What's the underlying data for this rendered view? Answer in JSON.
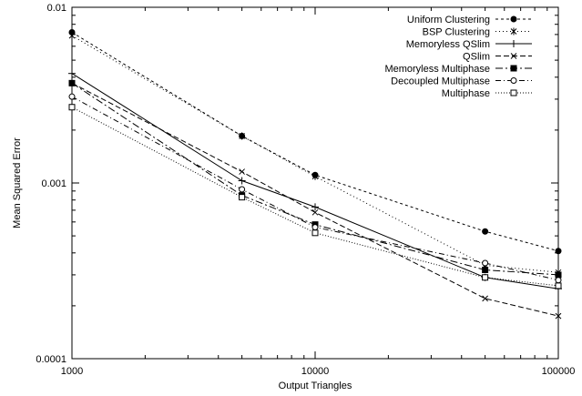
{
  "chart_data": {
    "type": "line",
    "title": "",
    "xlabel": "Output Triangles",
    "ylabel": "Mean Squared Error",
    "xscale": "log",
    "yscale": "log",
    "xlim": [
      1000,
      100000
    ],
    "ylim": [
      0.0001,
      0.01
    ],
    "grid": false,
    "legend_position": "top-right",
    "x_ticks": [
      {
        "value": 1000,
        "label": "1000"
      },
      {
        "value": 10000,
        "label": "10000"
      },
      {
        "value": 100000,
        "label": "100000"
      }
    ],
    "y_ticks": [
      {
        "value": 0.0001,
        "label": "0.0001"
      },
      {
        "value": 0.001,
        "label": "0.001"
      },
      {
        "value": 0.01,
        "label": "0.01"
      }
    ],
    "x": [
      1000,
      5000,
      10000,
      50000,
      100000
    ],
    "series": [
      {
        "name": "Uniform Clustering",
        "marker": "filled-circle",
        "dash": "3,3",
        "values": [
          0.0072,
          0.00185,
          0.00111,
          0.00053,
          0.00041
        ]
      },
      {
        "name": "BSP Clustering",
        "marker": "asterisk",
        "dash": "1,3",
        "values": [
          0.0069,
          0.00185,
          0.00109,
          0.00034,
          0.00031
        ]
      },
      {
        "name": "Memoryless QSlim",
        "marker": "plus",
        "dash": "",
        "values": [
          0.0042,
          0.00103,
          0.00073,
          0.00029,
          0.00025
        ]
      },
      {
        "name": "QSlim",
        "marker": "cross",
        "dash": "6,3",
        "values": [
          0.0037,
          0.00116,
          0.00068,
          0.00022,
          0.000175
        ]
      },
      {
        "name": "Memoryless Multiphase",
        "marker": "filled-square",
        "dash": "8,3,2,3",
        "values": [
          0.0037,
          0.00085,
          0.00058,
          0.00032,
          0.0003
        ]
      },
      {
        "name": "Decoupled Multiphase",
        "marker": "open-circle",
        "dash": "6,3,1,3",
        "values": [
          0.0031,
          0.00092,
          0.00056,
          0.00035,
          0.00028
        ]
      },
      {
        "name": "Multiphase",
        "marker": "open-square",
        "dash": "1,2",
        "values": [
          0.0027,
          0.00083,
          0.00052,
          0.00029,
          0.00026
        ]
      }
    ],
    "colors": {
      "line": "#000000",
      "background": "#ffffff"
    }
  }
}
